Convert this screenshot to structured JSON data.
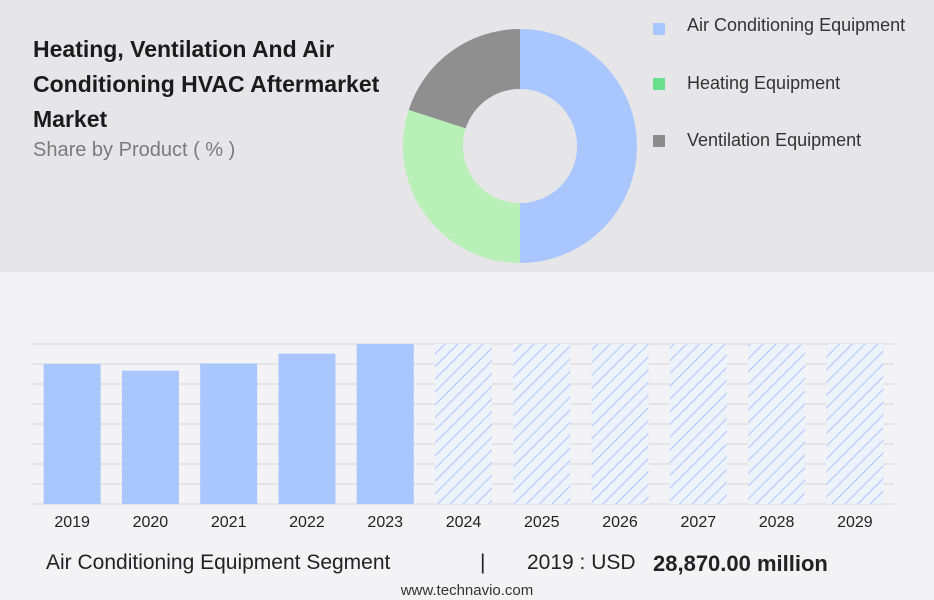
{
  "header": {
    "title": "Heating, Ventilation And Air Conditioning HVAC Aftermarket Market",
    "subtitle": "Share by Product ( % )"
  },
  "legend": [
    {
      "label": "Air Conditioning Equipment",
      "color": "#a9c6ff"
    },
    {
      "label": "Heating Equipment",
      "color": "#6bde8c"
    },
    {
      "label": "Ventilation Equipment",
      "color": "#8c8c8c"
    }
  ],
  "chart_data": [
    {
      "type": "pie",
      "categories": [
        "Air Conditioning Equipment",
        "Heating Equipment",
        "Ventilation Equipment"
      ],
      "values": [
        50,
        30,
        20
      ],
      "colors": [
        "#a9c6ff",
        "#b8f0b8",
        "#8f8f8f"
      ],
      "donut": true
    },
    {
      "type": "bar",
      "categories": [
        "2019",
        "2020",
        "2021",
        "2022",
        "2023",
        "2024",
        "2025",
        "2026",
        "2027",
        "2028",
        "2029"
      ],
      "values": [
        28870,
        27500,
        29000,
        31000,
        33000,
        33000,
        33000,
        33000,
        33000,
        33000,
        33000
      ],
      "forecast_from": "2024",
      "ylim": [
        0,
        33000
      ],
      "grid": true,
      "bar_color": "#a9c6ff",
      "forecast_color": "#a9c6ff"
    }
  ],
  "footer": {
    "segment": "Air Conditioning Equipment Segment",
    "separator": "|",
    "year_label": "2019 : USD",
    "value": "28,870.00 million"
  },
  "website": "www.technavio.com"
}
